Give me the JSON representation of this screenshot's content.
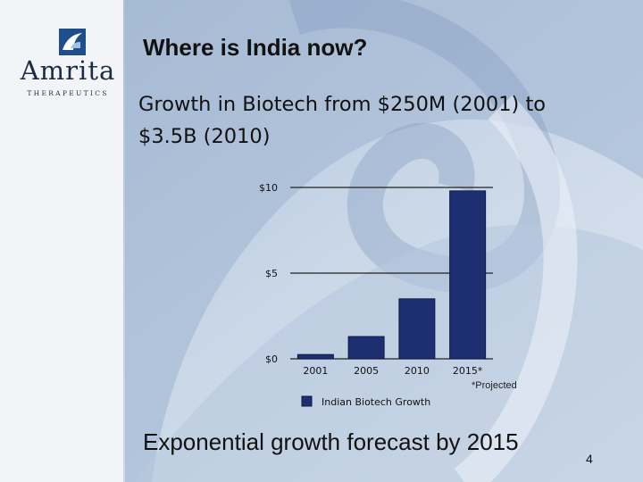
{
  "brand": {
    "name": "Amrita",
    "tagline": "THERAPEUTICS",
    "icon": "amrita-logo-mark"
  },
  "slide": {
    "title": "Where is India now?",
    "subtitle": "Growth in Biotech from $250M (2001) to $3.5B (2010)",
    "footnote": "*Projected",
    "conclusion": "Exponential growth forecast by 2015",
    "page_number": "4"
  },
  "colors": {
    "bar": "#1d2f70",
    "bar_stroke": "#0e1a45",
    "gridline": "#222222"
  },
  "chart_data": {
    "type": "bar",
    "categories": [
      "2001",
      "2005",
      "2010",
      "2015*"
    ],
    "series": [
      {
        "name": "Indian Biotech Growth",
        "values": [
          0.25,
          1.3,
          3.5,
          9.8
        ]
      }
    ],
    "yticks": [
      "$0",
      "$5",
      "$10"
    ],
    "ytick_values": [
      0,
      5,
      10
    ],
    "ylim": [
      0,
      10
    ],
    "title": "",
    "xlabel": "",
    "ylabel": "",
    "grid": true,
    "legend": "bottom"
  }
}
